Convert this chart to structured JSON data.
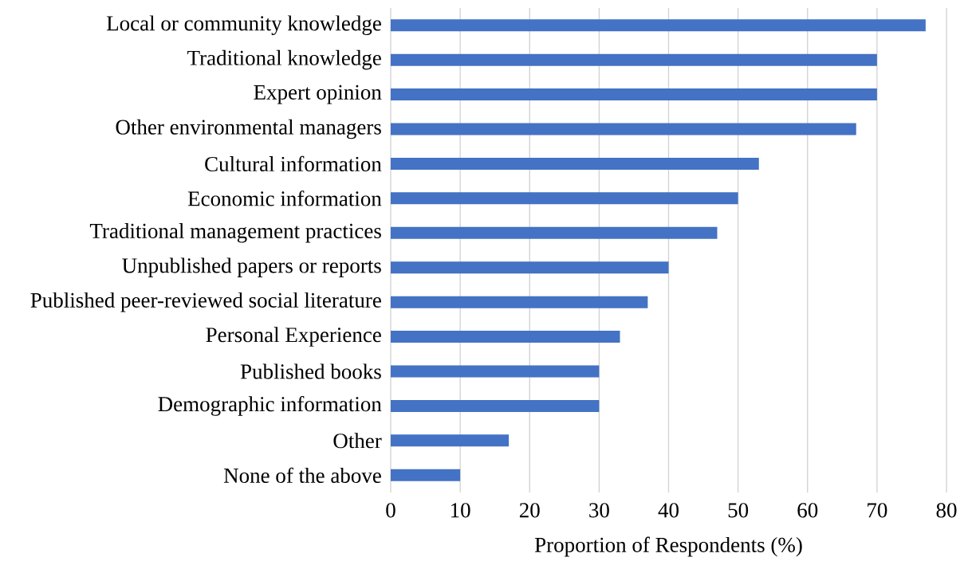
{
  "chart_data": {
    "type": "bar",
    "orientation": "horizontal",
    "xlabel": "Proportion of Respondents (%)",
    "categories": [
      "Local or community knowledge",
      "Traditional knowledge",
      "Expert opinion",
      "Other environmental managers",
      "Cultural information",
      "Economic information",
      "Traditional management practices",
      "Unpublished papers or reports",
      "Published peer-reviewed social literature",
      "Personal Experience",
      "Published books",
      "Demographic information",
      "Other",
      "None of the above"
    ],
    "values": [
      77,
      70,
      70,
      67,
      53,
      50,
      47,
      40,
      37,
      33,
      30,
      30,
      17,
      10
    ],
    "color": "#4472c4",
    "xlim": [
      0,
      80
    ],
    "xticks": [
      0,
      10,
      20,
      30,
      40,
      50,
      60,
      70,
      80
    ],
    "grid": "x"
  }
}
